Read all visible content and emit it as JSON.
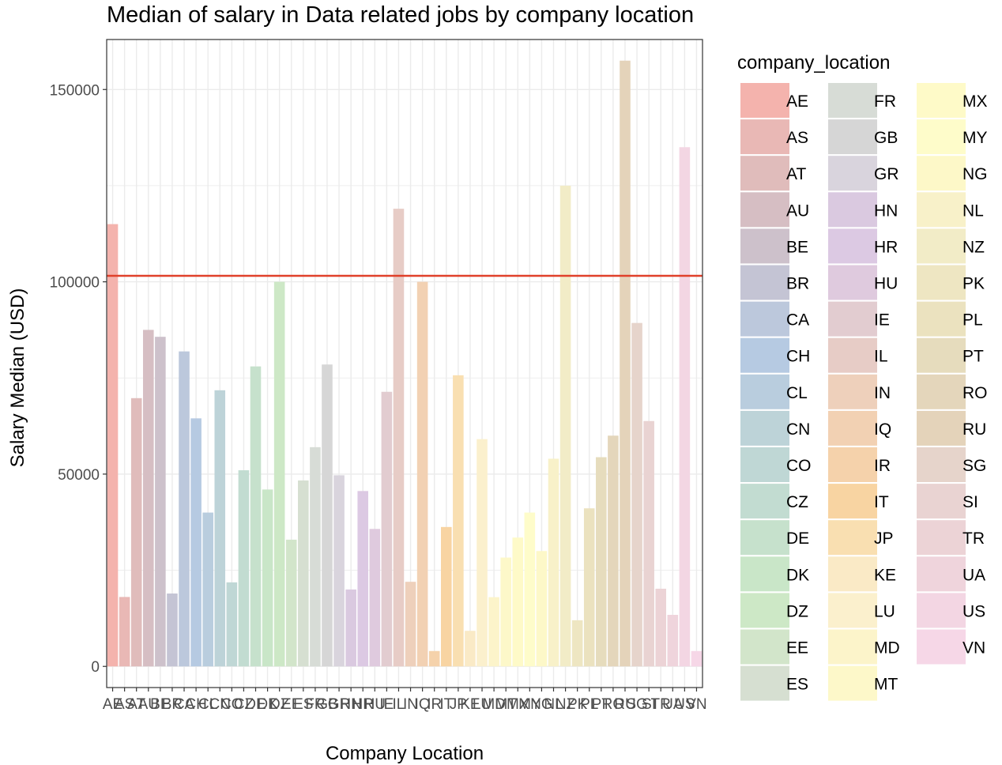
{
  "chart_data": {
    "type": "bar",
    "title": "Median of salary in Data related jobs by company location",
    "xlabel": "Company Location",
    "ylabel": "Salary Median (USD)",
    "ylim": [
      -5500,
      163000
    ],
    "yticks": [
      0,
      50000,
      100000,
      150000
    ],
    "grid": true,
    "legend_position": "right",
    "legend_title": "company_location",
    "reference_line": {
      "value": 101570,
      "color": "#e0402a"
    },
    "categories": [
      "AE",
      "AS",
      "AT",
      "AU",
      "BE",
      "BR",
      "CA",
      "CH",
      "CL",
      "CN",
      "CO",
      "CZ",
      "DE",
      "DK",
      "DZ",
      "EE",
      "ES",
      "FR",
      "GB",
      "GR",
      "HN",
      "HR",
      "HU",
      "IE",
      "IL",
      "IN",
      "IQ",
      "IR",
      "IT",
      "JP",
      "KE",
      "LU",
      "MD",
      "MT",
      "MX",
      "MY",
      "NG",
      "NL",
      "NZ",
      "PK",
      "PL",
      "PT",
      "RO",
      "RU",
      "SG",
      "SI",
      "TR",
      "UA",
      "US",
      "VN"
    ],
    "values": [
      115000,
      18050,
      69750,
      87500,
      85700,
      18950,
      81900,
      64500,
      40000,
      71800,
      21850,
      51000,
      78000,
      46000,
      100000,
      32950,
      48350,
      57000,
      78500,
      49700,
      20000,
      45600,
      35750,
      71400,
      119000,
      22000,
      100000,
      4000,
      36250,
      75700,
      9250,
      59100,
      18000,
      28300,
      33500,
      40000,
      30000,
      54000,
      125000,
      12000,
      41100,
      54400,
      60000,
      157500,
      89300,
      63800,
      20200,
      13400,
      135000,
      4000
    ],
    "colors": [
      "#f4b3ad",
      "#e9b8b5",
      "#e0bcbb",
      "#d6bec3",
      "#cdc1cb",
      "#c4c4d4",
      "#bcc8dc",
      "#b6cae2",
      "#b9cdde",
      "#bdd3d8",
      "#bfd7d5",
      "#c2dcd1",
      "#c6e1cc",
      "#c9e6c8",
      "#cde8c6",
      "#d2e5ca",
      "#d6dfd1",
      "#d7dcd6",
      "#d6d6d6",
      "#d9d4dd",
      "#dac9e0",
      "#dcc9e3",
      "#dfcade",
      "#e2ccd0",
      "#e7ccc6",
      "#eed0bb",
      "#f2d1b3",
      "#f5d2ab",
      "#f8d4a2",
      "#f9dfb1",
      "#faeac6",
      "#fbf0cd",
      "#fcf4ca",
      "#fdf8c9",
      "#fefac8",
      "#fefcca",
      "#fdf8c8",
      "#f8f1c9",
      "#f2ecc7",
      "#eee6c2",
      "#ebe2bf",
      "#e6dcbd",
      "#e4d6bb",
      "#e4d3ba",
      "#e6d4cb",
      "#e9d3d2",
      "#ecd3d6",
      "#efd4dc",
      "#f3d6e3",
      "#f6d7e7"
    ]
  }
}
